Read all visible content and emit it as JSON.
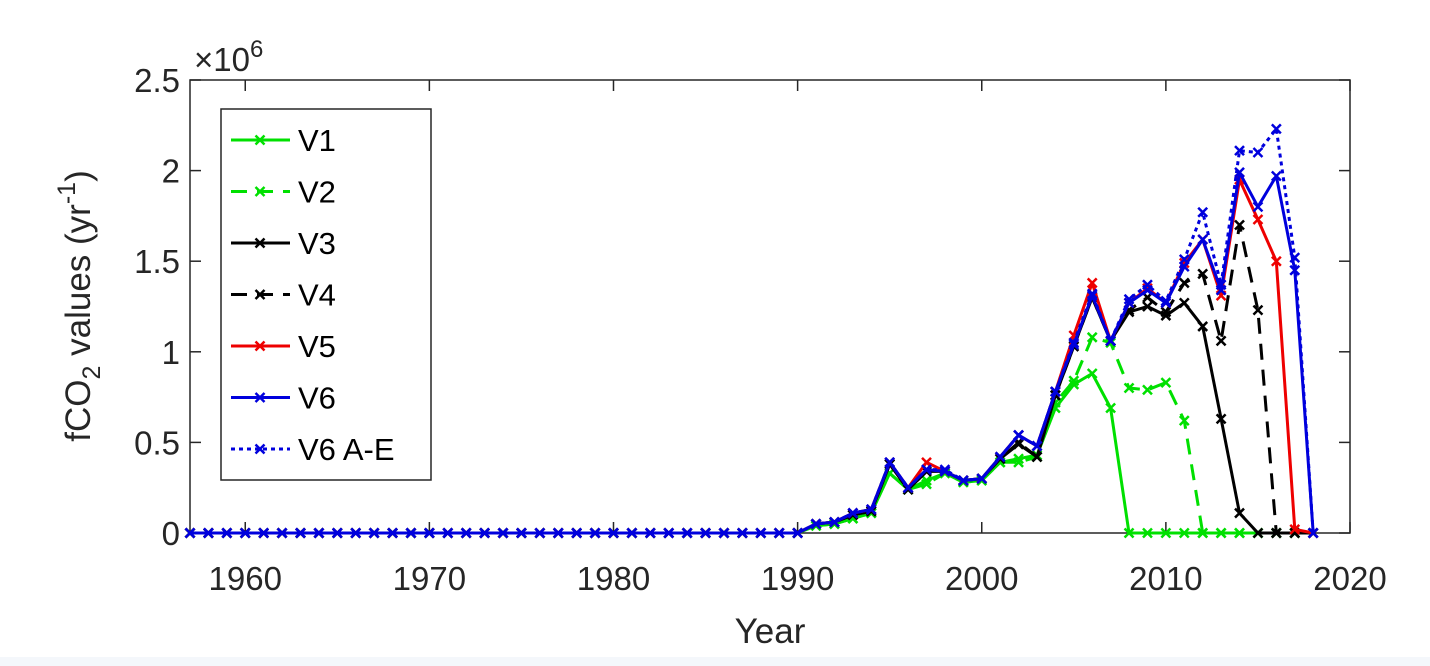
{
  "chart_data": {
    "type": "line",
    "xlabel": "Year",
    "ylabel_main": "fCO",
    "ylabel_sub": "2",
    "ylabel_mid": " values (yr",
    "ylabel_sup": "-1",
    "ylabel_end": ")",
    "exponent_base": "×10",
    "exponent_power": "6",
    "xlim": [
      1957,
      2020
    ],
    "ylim": [
      0,
      2500000
    ],
    "xticks": [
      1960,
      1970,
      1980,
      1990,
      2000,
      2010,
      2020
    ],
    "xtick_labels": [
      "1960",
      "1970",
      "1980",
      "1990",
      "2000",
      "2010",
      "2020"
    ],
    "yticks": [
      0,
      500000,
      1000000,
      1500000,
      2000000,
      2500000
    ],
    "ytick_labels": [
      "0",
      "0.5",
      "1",
      "1.5",
      "2",
      "2.5"
    ],
    "legend_position": "top-left",
    "x": [
      1957,
      1958,
      1959,
      1960,
      1961,
      1962,
      1963,
      1964,
      1965,
      1966,
      1967,
      1968,
      1969,
      1970,
      1971,
      1972,
      1973,
      1974,
      1975,
      1976,
      1977,
      1978,
      1979,
      1980,
      1981,
      1982,
      1983,
      1984,
      1985,
      1986,
      1987,
      1988,
      1989,
      1990,
      1991,
      1992,
      1993,
      1994,
      1995,
      1996,
      1997,
      1998,
      1999,
      2000,
      2001,
      2002,
      2003,
      2004,
      2005,
      2006,
      2007,
      2008,
      2009,
      2010,
      2011,
      2012,
      2013,
      2014,
      2015,
      2016,
      2017,
      2018
    ],
    "series": [
      {
        "name": "V1",
        "color": "#00e000",
        "dash": "solid",
        "values": [
          0,
          0,
          0,
          0,
          0,
          0,
          0,
          0,
          0,
          0,
          0,
          0,
          0,
          0,
          0,
          0,
          0,
          0,
          0,
          0,
          0,
          0,
          0,
          0,
          0,
          0,
          0,
          0,
          0,
          0,
          0,
          0,
          0,
          0,
          40000,
          50000,
          80000,
          110000,
          330000,
          240000,
          290000,
          330000,
          280000,
          290000,
          390000,
          410000,
          430000,
          690000,
          820000,
          880000,
          690000,
          0,
          0,
          0,
          0,
          0,
          0,
          0,
          0,
          0,
          0,
          0
        ]
      },
      {
        "name": "V2",
        "color": "#00e000",
        "dash": "dashed",
        "values": [
          0,
          0,
          0,
          0,
          0,
          0,
          0,
          0,
          0,
          0,
          0,
          0,
          0,
          0,
          0,
          0,
          0,
          0,
          0,
          0,
          0,
          0,
          0,
          0,
          0,
          0,
          0,
          0,
          0,
          0,
          0,
          0,
          0,
          0,
          40000,
          50000,
          80000,
          110000,
          330000,
          240000,
          270000,
          330000,
          280000,
          290000,
          390000,
          390000,
          420000,
          720000,
          840000,
          1080000,
          1050000,
          800000,
          790000,
          830000,
          620000,
          0,
          0,
          0,
          0,
          0,
          0,
          0
        ]
      },
      {
        "name": "V3",
        "color": "#000000",
        "dash": "solid",
        "values": [
          0,
          0,
          0,
          0,
          0,
          0,
          0,
          0,
          0,
          0,
          0,
          0,
          0,
          0,
          0,
          0,
          0,
          0,
          0,
          0,
          0,
          0,
          0,
          0,
          0,
          0,
          0,
          0,
          0,
          0,
          0,
          0,
          0,
          0,
          50000,
          60000,
          100000,
          120000,
          380000,
          240000,
          340000,
          340000,
          290000,
          300000,
          410000,
          490000,
          420000,
          760000,
          1030000,
          1300000,
          1060000,
          1220000,
          1250000,
          1200000,
          1270000,
          1140000,
          630000,
          110000,
          0,
          0,
          0,
          0
        ]
      },
      {
        "name": "V4",
        "color": "#000000",
        "dash": "dashed",
        "values": [
          0,
          0,
          0,
          0,
          0,
          0,
          0,
          0,
          0,
          0,
          0,
          0,
          0,
          0,
          0,
          0,
          0,
          0,
          0,
          0,
          0,
          0,
          0,
          0,
          0,
          0,
          0,
          0,
          0,
          0,
          0,
          0,
          0,
          0,
          50000,
          60000,
          100000,
          120000,
          380000,
          240000,
          340000,
          340000,
          290000,
          300000,
          410000,
          500000,
          420000,
          760000,
          1030000,
          1300000,
          1060000,
          1230000,
          1300000,
          1220000,
          1380000,
          1430000,
          1060000,
          1700000,
          1230000,
          0,
          0,
          0
        ]
      },
      {
        "name": "V5",
        "color": "#ee0000",
        "dash": "solid",
        "values": [
          0,
          0,
          0,
          0,
          0,
          0,
          0,
          0,
          0,
          0,
          0,
          0,
          0,
          0,
          0,
          0,
          0,
          0,
          0,
          0,
          0,
          0,
          0,
          0,
          0,
          0,
          0,
          0,
          0,
          0,
          0,
          0,
          0,
          0,
          50000,
          60000,
          110000,
          130000,
          390000,
          250000,
          390000,
          340000,
          290000,
          300000,
          420000,
          540000,
          480000,
          780000,
          1090000,
          1380000,
          1060000,
          1270000,
          1350000,
          1270000,
          1490000,
          1620000,
          1310000,
          1950000,
          1730000,
          1500000,
          20000,
          0
        ]
      },
      {
        "name": "V6",
        "color": "#0000dd",
        "dash": "solid",
        "values": [
          0,
          0,
          0,
          0,
          0,
          0,
          0,
          0,
          0,
          0,
          0,
          0,
          0,
          0,
          0,
          0,
          0,
          0,
          0,
          0,
          0,
          0,
          0,
          0,
          0,
          0,
          0,
          0,
          0,
          0,
          0,
          0,
          0,
          0,
          50000,
          60000,
          110000,
          130000,
          390000,
          250000,
          350000,
          340000,
          290000,
          300000,
          420000,
          540000,
          480000,
          780000,
          1040000,
          1310000,
          1060000,
          1270000,
          1340000,
          1270000,
          1470000,
          1620000,
          1340000,
          1990000,
          1800000,
          1970000,
          1450000,
          0
        ]
      },
      {
        "name": "V6 A-E",
        "color": "#0000dd",
        "dash": "dotted",
        "values": [
          0,
          0,
          0,
          0,
          0,
          0,
          0,
          0,
          0,
          0,
          0,
          0,
          0,
          0,
          0,
          0,
          0,
          0,
          0,
          0,
          0,
          0,
          0,
          0,
          0,
          0,
          0,
          0,
          0,
          0,
          0,
          0,
          0,
          0,
          50000,
          60000,
          110000,
          130000,
          390000,
          250000,
          350000,
          350000,
          290000,
          300000,
          420000,
          540000,
          480000,
          780000,
          1050000,
          1320000,
          1060000,
          1290000,
          1370000,
          1280000,
          1510000,
          1770000,
          1370000,
          2110000,
          2100000,
          2230000,
          1520000,
          0
        ]
      }
    ]
  }
}
